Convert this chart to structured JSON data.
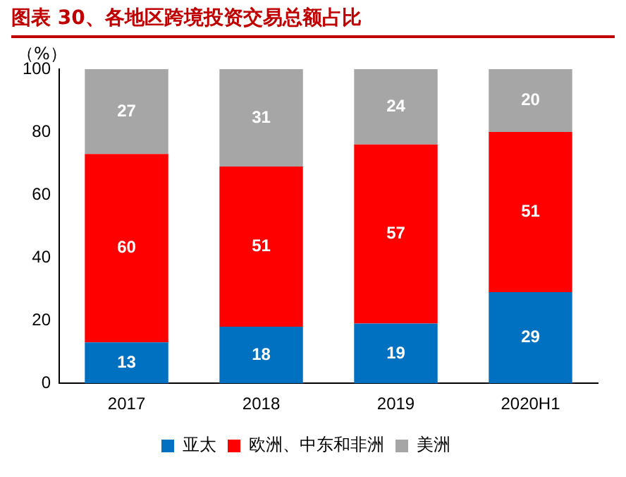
{
  "chart_data": {
    "type": "bar",
    "title": "图表 30、各地区跨境投资交易总额占比",
    "ylabel": "（%）",
    "categories": [
      "2017",
      "2018",
      "2019",
      "2020H1"
    ],
    "series": [
      {
        "name": "亚太",
        "color": "#0070c0",
        "values": [
          13,
          18,
          19,
          29
        ]
      },
      {
        "name": "欧洲、中东和非洲",
        "color": "#ff0000",
        "values": [
          60,
          51,
          57,
          51
        ]
      },
      {
        "name": "美洲",
        "color": "#a6a6a6",
        "values": [
          27,
          31,
          24,
          20
        ]
      }
    ],
    "stacked": true,
    "ylim": [
      0,
      100
    ],
    "yticks": [
      0,
      20,
      40,
      60,
      80,
      100
    ],
    "data_labels": true,
    "legend": "bottom",
    "grid": false
  }
}
